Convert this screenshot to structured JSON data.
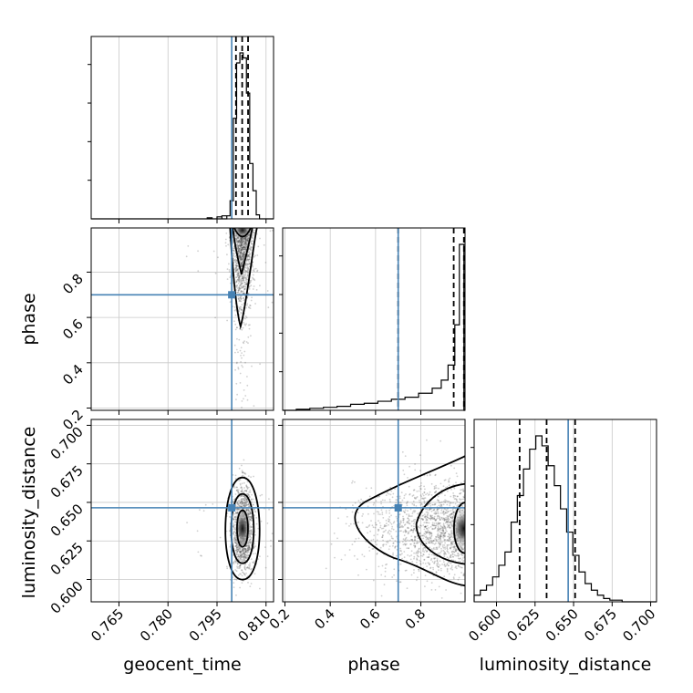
{
  "chart_data": {
    "type": "corner",
    "parameters": [
      {
        "name": "geocent_time",
        "range": [
          0.7565,
          0.8123
        ],
        "ticks": [
          0.765,
          0.78,
          0.795,
          0.81
        ],
        "tick_labels": [
          "0.765",
          "0.780",
          "0.795",
          "0.810"
        ],
        "truth": 0.7995,
        "quantiles": [
          0.8008,
          0.8027,
          0.8045
        ]
      },
      {
        "name": "phase",
        "range": [
          0.19,
          0.995
        ],
        "ticks": [
          0.2,
          0.4,
          0.6,
          0.8
        ],
        "tick_labels": [
          "0.2",
          "0.4",
          "0.6",
          "0.8"
        ],
        "truth": 0.7,
        "quantiles": [
          0.7,
          0.945,
          0.99
        ]
      },
      {
        "name": "luminosity_distance",
        "range": [
          0.5855,
          0.7038
        ],
        "ticks": [
          0.6,
          0.625,
          0.65,
          0.675,
          0.7
        ],
        "tick_labels": [
          "0.600",
          "0.625",
          "0.650",
          "0.675",
          "0.700"
        ],
        "truth": 0.6465,
        "quantiles": [
          0.615,
          0.6325,
          0.651
        ]
      }
    ],
    "histograms": {
      "geocent_time": {
        "bins": [
          0.798,
          0.799,
          0.8,
          0.801,
          0.802,
          0.803,
          0.804,
          0.805,
          0.806,
          0.807,
          0.808,
          0.809
        ],
        "counts": [
          3,
          18,
          100,
          155,
          165,
          160,
          125,
          55,
          28,
          4,
          0
        ],
        "low_tail": [
          [
            0.792,
            0.7935,
            1
          ],
          [
            0.795,
            0.7965,
            2
          ],
          [
            0.7965,
            0.798,
            3
          ]
        ]
      },
      "phase": {
        "bins": [
          0.19,
          0.25,
          0.31,
          0.37,
          0.43,
          0.49,
          0.55,
          0.61,
          0.67,
          0.73,
          0.79,
          0.85,
          0.89,
          0.92,
          0.95,
          0.97,
          0.99
        ],
        "counts": [
          0,
          1,
          2,
          3,
          4,
          6,
          7,
          9,
          11,
          13,
          17,
          22,
          30,
          45,
          85,
          165
        ]
      },
      "luminosity_distance": {
        "bins": [
          0.5855,
          0.5895,
          0.5935,
          0.5975,
          0.6015,
          0.6055,
          0.6095,
          0.6135,
          0.6175,
          0.6215,
          0.6255,
          0.6295,
          0.6335,
          0.6375,
          0.6415,
          0.6455,
          0.6495,
          0.6535,
          0.6575,
          0.6615,
          0.6655,
          0.6695,
          0.6735,
          0.6775,
          0.6815,
          0.6855,
          0.6895,
          0.6935
        ],
        "counts": [
          4,
          7,
          10,
          15,
          22,
          30,
          48,
          64,
          80,
          92,
          100,
          94,
          82,
          70,
          56,
          42,
          28,
          18,
          11,
          7,
          4,
          2,
          1,
          1,
          0,
          0,
          0
        ]
      }
    },
    "contours": {
      "phase_vs_geocent_time": {
        "center": [
          0.8028,
          0.985
        ],
        "axis": "phase",
        "levels": 3
      },
      "luminosity_distance_vs_geocent_time": {
        "center": [
          0.8028,
          0.633
        ],
        "levels": 3
      },
      "luminosity_distance_vs_phase": {
        "center": [
          0.99,
          0.633
        ],
        "levels": 3
      }
    },
    "truth_color": "#4682b4",
    "grid": true
  }
}
